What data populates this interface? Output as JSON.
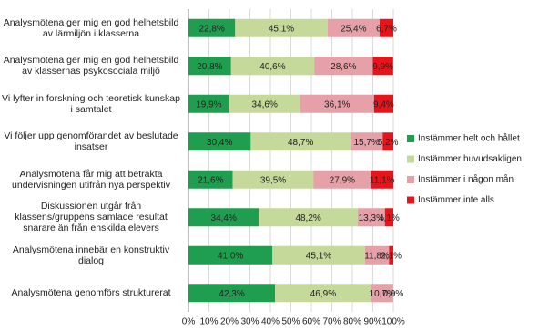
{
  "chart_data": {
    "type": "stacked-bar-horizontal",
    "categories": [
      "Analysmötena ger mig en god helhetsbild av lärmiljön i klasserna",
      "Analysmötena ger mig en god helhetsbild av klassernas psykosociala miljö",
      "Vi lyfter in forskning och teoretisk kunskap i samtalet",
      "Vi följer upp genomförandet av beslutade insatser",
      "Analysmötena får mig att betrakta undervisningen utifrån nya perspektiv",
      "Diskussionen utgår från klassens/gruppens samlade resultat snarare än från enskilda elevers",
      "Analysmötena innebär en konstruktiv dialog",
      "Analysmötena genomförs strukturerat"
    ],
    "series": [
      {
        "name": "Instämmer helt och hållet",
        "color": "#1f9e4f",
        "values": [
          22.8,
          20.8,
          19.9,
          30.4,
          21.6,
          34.4,
          41.0,
          42.3
        ],
        "value_labels": [
          "22,8%",
          "20,8%",
          "19,9%",
          "30,4%",
          "21,6%",
          "34,4%",
          "41,0%",
          "42,3%"
        ]
      },
      {
        "name": "Instämmer huvudsakligen",
        "color": "#c5d99b",
        "values": [
          45.1,
          40.6,
          34.6,
          48.7,
          39.5,
          48.2,
          45.1,
          46.9
        ],
        "value_labels": [
          "45,1%",
          "40,6%",
          "34,6%",
          "48,7%",
          "39,5%",
          "48,2%",
          "45,1%",
          "46,9%"
        ]
      },
      {
        "name": "Instämmer i någon mån",
        "color": "#e5a0a8",
        "values": [
          25.4,
          28.6,
          36.1,
          15.7,
          27.9,
          13.3,
          11.8,
          10.7
        ],
        "value_labels": [
          "25,4%",
          "28,6%",
          "36,1%",
          "15,7%",
          "27,9%",
          "13,3%",
          "11,8%",
          "10,7%"
        ]
      },
      {
        "name": "Instämmer inte alls",
        "color": "#e8141b",
        "values": [
          6.7,
          9.9,
          9.4,
          5.2,
          11.1,
          4.1,
          2.1,
          0.0
        ],
        "value_labels": [
          "6,7%",
          "9,9%",
          "9,4%",
          "5,2%",
          "11,1%",
          "4,1%",
          "2,1%",
          "0,0%"
        ]
      }
    ],
    "xlim": [
      0,
      100
    ],
    "xticks": [
      {
        "value": 0,
        "label": "0%"
      },
      {
        "value": 10,
        "label": "10%"
      },
      {
        "value": 20,
        "label": "20%"
      },
      {
        "value": 30,
        "label": "30%"
      },
      {
        "value": 40,
        "label": "40%"
      },
      {
        "value": 50,
        "label": "50%"
      },
      {
        "value": 60,
        "label": "60%"
      },
      {
        "value": 70,
        "label": "70%"
      },
      {
        "value": 80,
        "label": "80%"
      },
      {
        "value": 90,
        "label": "90%"
      },
      {
        "value": 100,
        "label": "100%"
      }
    ],
    "grid": true
  }
}
